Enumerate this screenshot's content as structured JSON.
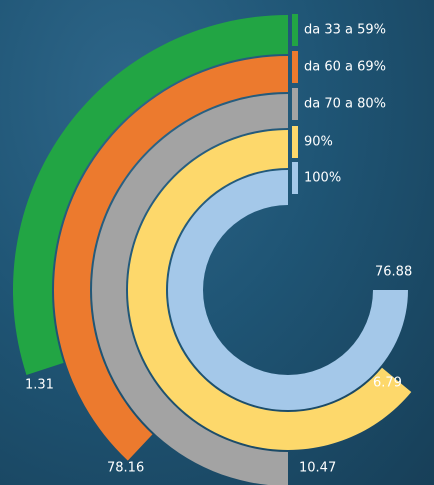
{
  "chart_data": {
    "type": "radial-bar",
    "categories": [
      "da 33 a 59%",
      "da 60 a 69%",
      "da 70 a 80%",
      "90%",
      "100%"
    ],
    "values": [
      30,
      38,
      50,
      64,
      75
    ],
    "colors": [
      "#22a544",
      "#ec7a2e",
      "#a3a3a3",
      "#fdd86b",
      "#a4c8e9"
    ],
    "annotations": [
      "1.31",
      "78.16",
      "10.47",
      "6.79",
      "76.88"
    ],
    "ylim": [
      0,
      100
    ]
  }
}
